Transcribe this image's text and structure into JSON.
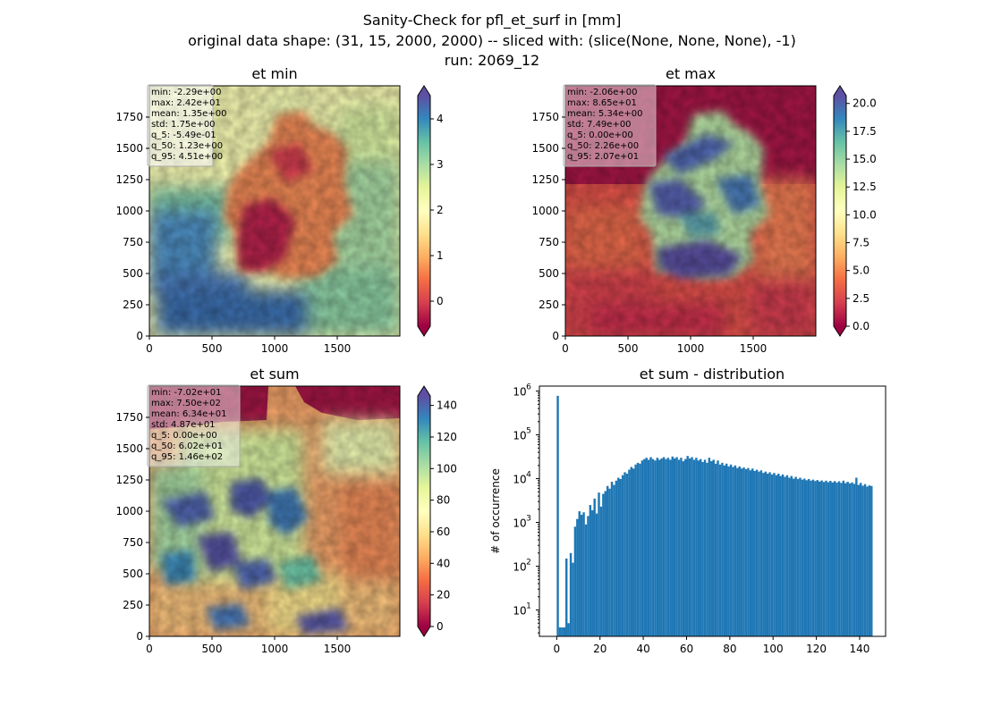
{
  "figure": {
    "title_lines": [
      "Sanity-Check for pfl_et_surf in [mm]",
      "original data shape: (31, 15, 2000, 2000) -- sliced with: (slice(None, None, None), -1)",
      "run: 2069_12"
    ]
  },
  "panels": {
    "et_min": {
      "title": "et min",
      "stats": [
        "min: -2.29e+00",
        "max: 2.42e+01",
        "mean: 1.35e+00",
        "std: 1.75e+00",
        "q_5: -5.49e-01",
        "q_50: 1.23e+00",
        "q_95: 4.51e+00"
      ],
      "xticks": [
        "0",
        "500",
        "1000",
        "1500"
      ],
      "yticks": [
        "0",
        "250",
        "500",
        "750",
        "1000",
        "1250",
        "1500",
        "1750"
      ],
      "colorbar": {
        "ticks": [
          "0",
          "1",
          "2",
          "3",
          "4"
        ],
        "vmin": -0.549,
        "vmax": 4.51
      }
    },
    "et_max": {
      "title": "et max",
      "stats": [
        "min: -2.06e+00",
        "max: 8.65e+01",
        "mean: 5.34e+00",
        "std: 7.49e+00",
        "q_5: 0.00e+00",
        "q_50: 2.26e+00",
        "q_95: 2.07e+01"
      ],
      "xticks": [
        "0",
        "500",
        "1000",
        "1500"
      ],
      "yticks": [
        "0",
        "250",
        "500",
        "750",
        "1000",
        "1250",
        "1500",
        "1750"
      ],
      "colorbar": {
        "ticks": [
          "0.0",
          "2.5",
          "5.0",
          "7.5",
          "10.0",
          "12.5",
          "15.0",
          "17.5",
          "20.0"
        ],
        "vmin": 0,
        "vmax": 20.7
      }
    },
    "et_sum": {
      "title": "et sum",
      "stats": [
        "min: -7.02e+01",
        "max: 7.50e+02",
        "mean: 6.34e+01",
        "std: 4.87e+01",
        "q_5: 0.00e+00",
        "q_50: 6.02e+01",
        "q_95: 1.46e+02"
      ],
      "xticks": [
        "0",
        "500",
        "1000",
        "1500"
      ],
      "yticks": [
        "0",
        "250",
        "500",
        "750",
        "1000",
        "1250",
        "1500",
        "1750"
      ],
      "colorbar": {
        "ticks": [
          "0",
          "20",
          "40",
          "60",
          "80",
          "100",
          "120",
          "140"
        ],
        "vmin": 0,
        "vmax": 146
      }
    }
  },
  "chart_data": [
    {
      "type": "heatmap",
      "title": "et min",
      "xlim": [
        0,
        2000
      ],
      "ylim": [
        0,
        2000
      ],
      "colormap": "Spectral",
      "colorbar_range": [
        -0.549,
        4.51
      ]
    },
    {
      "type": "heatmap",
      "title": "et max",
      "xlim": [
        0,
        2000
      ],
      "ylim": [
        0,
        2000
      ],
      "colormap": "Spectral",
      "colorbar_range": [
        0,
        20.7
      ]
    },
    {
      "type": "heatmap",
      "title": "et sum",
      "xlim": [
        0,
        2000
      ],
      "ylim": [
        0,
        2000
      ],
      "colormap": "Spectral",
      "colorbar_range": [
        0,
        146
      ]
    },
    {
      "type": "bar",
      "title": "et sum - distribution",
      "xlabel": "",
      "ylabel": "# of occurrence",
      "yscale": "log",
      "xlim": [
        -8,
        152
      ],
      "ylim": [
        2.5,
        1300000
      ],
      "xticks": [
        "0",
        "20",
        "40",
        "60",
        "80",
        "100",
        "120",
        "140"
      ],
      "yticks": [
        "10^1",
        "10^2",
        "10^3",
        "10^4",
        "10^5",
        "10^6"
      ],
      "color": "#1f77b4",
      "bins": [
        [
          0,
          780000
        ],
        [
          1,
          4
        ],
        [
          2,
          4
        ],
        [
          3,
          4
        ],
        [
          4,
          150
        ],
        [
          5,
          5
        ],
        [
          6,
          200
        ],
        [
          7,
          120
        ],
        [
          8,
          800
        ],
        [
          9,
          1200
        ],
        [
          10,
          1800
        ],
        [
          11,
          1500
        ],
        [
          12,
          1700
        ],
        [
          13,
          900
        ],
        [
          14,
          1400
        ],
        [
          15,
          2500
        ],
        [
          16,
          1900
        ],
        [
          17,
          3500
        ],
        [
          18,
          1600
        ],
        [
          19,
          4800
        ],
        [
          20,
          2300
        ],
        [
          21,
          4500
        ],
        [
          22,
          5200
        ],
        [
          23,
          6800
        ],
        [
          24,
          5900
        ],
        [
          25,
          8500
        ],
        [
          26,
          7200
        ],
        [
          27,
          9000
        ],
        [
          28,
          10500
        ],
        [
          29,
          9800
        ],
        [
          30,
          12000
        ],
        [
          31,
          14000
        ],
        [
          32,
          13000
        ],
        [
          33,
          16000
        ],
        [
          34,
          18500
        ],
        [
          35,
          17000
        ],
        [
          36,
          21000
        ],
        [
          37,
          23000
        ],
        [
          38,
          22000
        ],
        [
          39,
          26000
        ],
        [
          40,
          28000
        ],
        [
          41,
          30000
        ],
        [
          42,
          27000
        ],
        [
          43,
          31000
        ],
        [
          44,
          28000
        ],
        [
          45,
          26000
        ],
        [
          46,
          30000
        ],
        [
          47,
          27000
        ],
        [
          48,
          29000
        ],
        [
          49,
          31000
        ],
        [
          50,
          28000
        ],
        [
          51,
          30000
        ],
        [
          52,
          27000
        ],
        [
          53,
          32000
        ],
        [
          54,
          29000
        ],
        [
          55,
          31000
        ],
        [
          56,
          27000
        ],
        [
          57,
          30000
        ],
        [
          58,
          25000
        ],
        [
          59,
          28000
        ],
        [
          60,
          33000
        ],
        [
          61,
          29000
        ],
        [
          62,
          31000
        ],
        [
          63,
          27000
        ],
        [
          64,
          30000
        ],
        [
          65,
          26000
        ],
        [
          66,
          28000
        ],
        [
          67,
          24000
        ],
        [
          68,
          27000
        ],
        [
          69,
          23000
        ],
        [
          70,
          30000
        ],
        [
          71,
          25000
        ],
        [
          72,
          27000
        ],
        [
          73,
          22000
        ],
        [
          74,
          26000
        ],
        [
          75,
          21000
        ],
        [
          76,
          23000
        ],
        [
          77,
          20000
        ],
        [
          78,
          22000
        ],
        [
          79,
          19000
        ],
        [
          80,
          21000
        ],
        [
          81,
          18500
        ],
        [
          82,
          20000
        ],
        [
          83,
          17500
        ],
        [
          84,
          19000
        ],
        [
          85,
          17000
        ],
        [
          86,
          18000
        ],
        [
          87,
          16500
        ],
        [
          88,
          17500
        ],
        [
          89,
          15500
        ],
        [
          90,
          17000
        ],
        [
          91,
          15000
        ],
        [
          92,
          16000
        ],
        [
          93,
          14500
        ],
        [
          94,
          15500
        ],
        [
          95,
          13500
        ],
        [
          96,
          14500
        ],
        [
          97,
          13000
        ],
        [
          98,
          14000
        ],
        [
          99,
          12500
        ],
        [
          100,
          13500
        ],
        [
          101,
          12000
        ],
        [
          102,
          13000
        ],
        [
          103,
          11500
        ],
        [
          104,
          12500
        ],
        [
          105,
          11000
        ],
        [
          106,
          12000
        ],
        [
          107,
          10500
        ],
        [
          108,
          11500
        ],
        [
          109,
          10000
        ],
        [
          110,
          11000
        ],
        [
          111,
          9800
        ],
        [
          112,
          10500
        ],
        [
          113,
          9500
        ],
        [
          114,
          10000
        ],
        [
          115,
          9200
        ],
        [
          116,
          9800
        ],
        [
          117,
          9000
        ],
        [
          118,
          9500
        ],
        [
          119,
          8800
        ],
        [
          120,
          9300
        ],
        [
          121,
          8600
        ],
        [
          122,
          9100
        ],
        [
          123,
          8400
        ],
        [
          124,
          9000
        ],
        [
          125,
          8300
        ],
        [
          126,
          8900
        ],
        [
          127,
          8200
        ],
        [
          128,
          8800
        ],
        [
          129,
          8100
        ],
        [
          130,
          8700
        ],
        [
          131,
          8000
        ],
        [
          132,
          9000
        ],
        [
          133,
          7900
        ],
        [
          134,
          8500
        ],
        [
          135,
          7800
        ],
        [
          136,
          8200
        ],
        [
          137,
          7600
        ],
        [
          138,
          10500
        ],
        [
          139,
          7200
        ],
        [
          140,
          8000
        ],
        [
          141,
          6900
        ],
        [
          142,
          7500
        ],
        [
          143,
          6600
        ],
        [
          144,
          7000
        ],
        [
          145,
          6800
        ]
      ]
    }
  ]
}
